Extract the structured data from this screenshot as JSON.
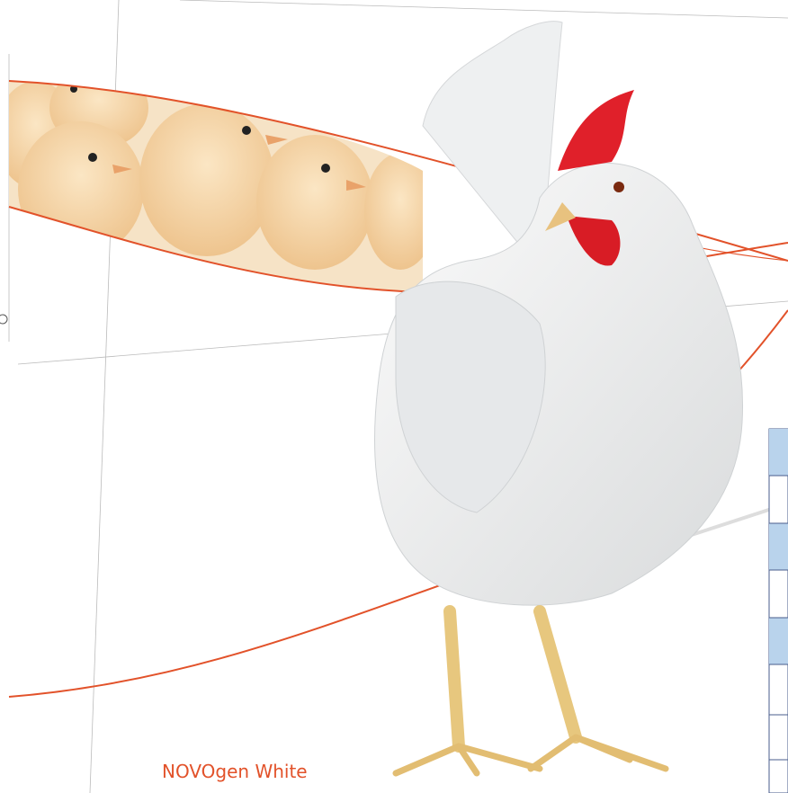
{
  "caption": "NOVOgen White"
}
